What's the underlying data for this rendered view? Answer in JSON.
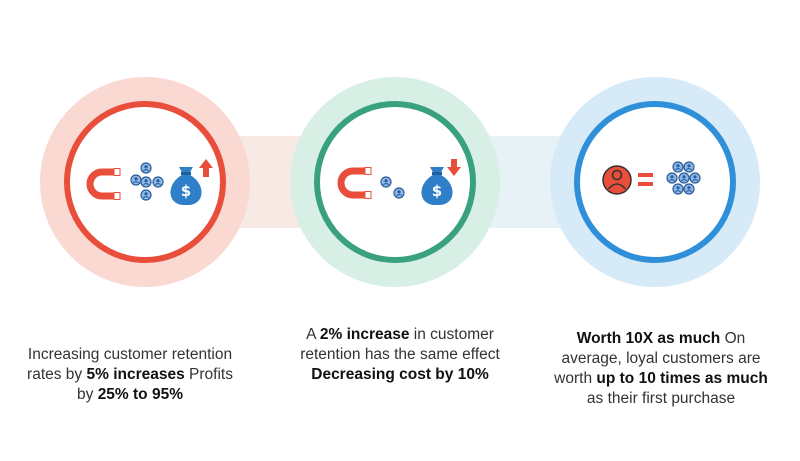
{
  "colors": {
    "circle1_ring": "#e84e3a",
    "circle1_fill": "#fad9d3",
    "circle2_ring": "#3aa17e",
    "circle2_fill": "#d8efe6",
    "circle3_ring": "#2f8fd8",
    "circle3_fill": "#d7eaf8",
    "magnet_red": "#e84e3a",
    "bag_blue": "#2f7fc8",
    "customer_icon_blue": "#8fb7e6",
    "arrow_red": "#e84e3a"
  },
  "icons": {
    "stat1": [
      "magnet-icon",
      "customer-group-icon",
      "money-bag-icon",
      "arrow-up-icon"
    ],
    "stat2": [
      "magnet-icon",
      "customer-icon",
      "money-bag-icon",
      "arrow-down-icon"
    ],
    "stat3": [
      "customer-avatar-icon",
      "equals-icon",
      "customer-group-icon"
    ]
  },
  "stats": [
    {
      "parts": [
        {
          "text": "Increasing customer retention rates by ",
          "bold": false
        },
        {
          "text": "5% increases",
          "bold": true
        },
        {
          "text": " Profits by ",
          "bold": false
        },
        {
          "text": "25% to 95%",
          "bold": true
        }
      ]
    },
    {
      "parts": [
        {
          "text": "A ",
          "bold": false
        },
        {
          "text": "2% increase",
          "bold": true
        },
        {
          "text": " in customer retention has the same effect ",
          "bold": false
        },
        {
          "text": "Decreasing cost by 10%",
          "bold": true
        }
      ]
    },
    {
      "parts": [
        {
          "text": "Worth 10X as much",
          "bold": true
        },
        {
          "text": " On average, loyal customers are worth ",
          "bold": false
        },
        {
          "text": "up to 10 times as much",
          "bold": true
        },
        {
          "text": " as their first purchase",
          "bold": false
        }
      ]
    }
  ]
}
